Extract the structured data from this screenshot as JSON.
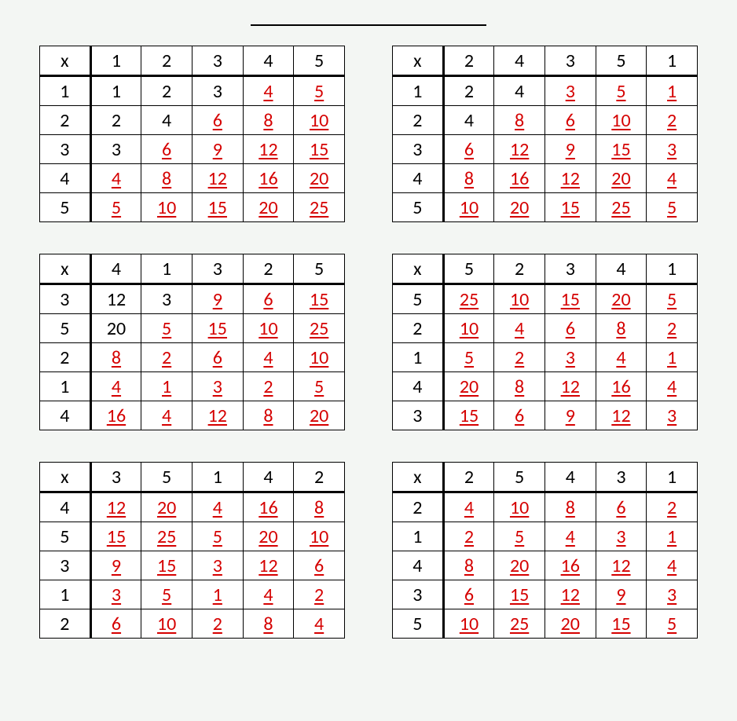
{
  "header_symbol": "x",
  "colors": {
    "answer": "#d50000",
    "plain": "#000000",
    "background": "#f3f6f3"
  },
  "font_size_pt": 18,
  "tables": [
    {
      "col_headers": [
        1,
        2,
        3,
        4,
        5
      ],
      "row_headers": [
        1,
        2,
        3,
        4,
        5
      ],
      "cells": [
        [
          {
            "v": 1,
            "ans": false
          },
          {
            "v": 2,
            "ans": false
          },
          {
            "v": 3,
            "ans": false
          },
          {
            "v": 4,
            "ans": true
          },
          {
            "v": 5,
            "ans": true
          }
        ],
        [
          {
            "v": 2,
            "ans": false
          },
          {
            "v": 4,
            "ans": false
          },
          {
            "v": 6,
            "ans": true
          },
          {
            "v": 8,
            "ans": true
          },
          {
            "v": 10,
            "ans": true
          }
        ],
        [
          {
            "v": 3,
            "ans": false
          },
          {
            "v": 6,
            "ans": true
          },
          {
            "v": 9,
            "ans": true
          },
          {
            "v": 12,
            "ans": true
          },
          {
            "v": 15,
            "ans": true
          }
        ],
        [
          {
            "v": 4,
            "ans": true
          },
          {
            "v": 8,
            "ans": true
          },
          {
            "v": 12,
            "ans": true
          },
          {
            "v": 16,
            "ans": true
          },
          {
            "v": 20,
            "ans": true
          }
        ],
        [
          {
            "v": 5,
            "ans": true
          },
          {
            "v": 10,
            "ans": true
          },
          {
            "v": 15,
            "ans": true
          },
          {
            "v": 20,
            "ans": true
          },
          {
            "v": 25,
            "ans": true
          }
        ]
      ]
    },
    {
      "col_headers": [
        2,
        4,
        3,
        5,
        1
      ],
      "row_headers": [
        1,
        2,
        3,
        4,
        5
      ],
      "cells": [
        [
          {
            "v": 2,
            "ans": false
          },
          {
            "v": 4,
            "ans": false
          },
          {
            "v": 3,
            "ans": true
          },
          {
            "v": 5,
            "ans": true
          },
          {
            "v": 1,
            "ans": true
          }
        ],
        [
          {
            "v": 4,
            "ans": false
          },
          {
            "v": 8,
            "ans": true
          },
          {
            "v": 6,
            "ans": true
          },
          {
            "v": 10,
            "ans": true
          },
          {
            "v": 2,
            "ans": true
          }
        ],
        [
          {
            "v": 6,
            "ans": true
          },
          {
            "v": 12,
            "ans": true
          },
          {
            "v": 9,
            "ans": true
          },
          {
            "v": 15,
            "ans": true
          },
          {
            "v": 3,
            "ans": true
          }
        ],
        [
          {
            "v": 8,
            "ans": true
          },
          {
            "v": 16,
            "ans": true
          },
          {
            "v": 12,
            "ans": true
          },
          {
            "v": 20,
            "ans": true
          },
          {
            "v": 4,
            "ans": true
          }
        ],
        [
          {
            "v": 10,
            "ans": true
          },
          {
            "v": 20,
            "ans": true
          },
          {
            "v": 15,
            "ans": true
          },
          {
            "v": 25,
            "ans": true
          },
          {
            "v": 5,
            "ans": true
          }
        ]
      ]
    },
    {
      "col_headers": [
        4,
        1,
        3,
        2,
        5
      ],
      "row_headers": [
        3,
        5,
        2,
        1,
        4
      ],
      "cells": [
        [
          {
            "v": 12,
            "ans": false
          },
          {
            "v": 3,
            "ans": false
          },
          {
            "v": 9,
            "ans": true
          },
          {
            "v": 6,
            "ans": true
          },
          {
            "v": 15,
            "ans": true
          }
        ],
        [
          {
            "v": 20,
            "ans": false
          },
          {
            "v": 5,
            "ans": true
          },
          {
            "v": 15,
            "ans": true
          },
          {
            "v": 10,
            "ans": true
          },
          {
            "v": 25,
            "ans": true
          }
        ],
        [
          {
            "v": 8,
            "ans": true
          },
          {
            "v": 2,
            "ans": true
          },
          {
            "v": 6,
            "ans": true
          },
          {
            "v": 4,
            "ans": true
          },
          {
            "v": 10,
            "ans": true
          }
        ],
        [
          {
            "v": 4,
            "ans": true
          },
          {
            "v": 1,
            "ans": true
          },
          {
            "v": 3,
            "ans": true
          },
          {
            "v": 2,
            "ans": true
          },
          {
            "v": 5,
            "ans": true
          }
        ],
        [
          {
            "v": 16,
            "ans": true
          },
          {
            "v": 4,
            "ans": true
          },
          {
            "v": 12,
            "ans": true
          },
          {
            "v": 8,
            "ans": true
          },
          {
            "v": 20,
            "ans": true
          }
        ]
      ]
    },
    {
      "col_headers": [
        5,
        2,
        3,
        4,
        1
      ],
      "row_headers": [
        5,
        2,
        1,
        4,
        3
      ],
      "cells": [
        [
          {
            "v": 25,
            "ans": true
          },
          {
            "v": 10,
            "ans": true
          },
          {
            "v": 15,
            "ans": true
          },
          {
            "v": 20,
            "ans": true
          },
          {
            "v": 5,
            "ans": true
          }
        ],
        [
          {
            "v": 10,
            "ans": true
          },
          {
            "v": 4,
            "ans": true
          },
          {
            "v": 6,
            "ans": true
          },
          {
            "v": 8,
            "ans": true
          },
          {
            "v": 2,
            "ans": true
          }
        ],
        [
          {
            "v": 5,
            "ans": true
          },
          {
            "v": 2,
            "ans": true
          },
          {
            "v": 3,
            "ans": true
          },
          {
            "v": 4,
            "ans": true
          },
          {
            "v": 1,
            "ans": true
          }
        ],
        [
          {
            "v": 20,
            "ans": true
          },
          {
            "v": 8,
            "ans": true
          },
          {
            "v": 12,
            "ans": true
          },
          {
            "v": 16,
            "ans": true
          },
          {
            "v": 4,
            "ans": true
          }
        ],
        [
          {
            "v": 15,
            "ans": true
          },
          {
            "v": 6,
            "ans": true
          },
          {
            "v": 9,
            "ans": true
          },
          {
            "v": 12,
            "ans": true
          },
          {
            "v": 3,
            "ans": true
          }
        ]
      ]
    },
    {
      "col_headers": [
        3,
        5,
        1,
        4,
        2
      ],
      "row_headers": [
        4,
        5,
        3,
        1,
        2
      ],
      "cells": [
        [
          {
            "v": 12,
            "ans": true
          },
          {
            "v": 20,
            "ans": true
          },
          {
            "v": 4,
            "ans": true
          },
          {
            "v": 16,
            "ans": true
          },
          {
            "v": 8,
            "ans": true
          }
        ],
        [
          {
            "v": 15,
            "ans": true
          },
          {
            "v": 25,
            "ans": true
          },
          {
            "v": 5,
            "ans": true
          },
          {
            "v": 20,
            "ans": true
          },
          {
            "v": 10,
            "ans": true
          }
        ],
        [
          {
            "v": 9,
            "ans": true
          },
          {
            "v": 15,
            "ans": true
          },
          {
            "v": 3,
            "ans": true
          },
          {
            "v": 12,
            "ans": true
          },
          {
            "v": 6,
            "ans": true
          }
        ],
        [
          {
            "v": 3,
            "ans": true
          },
          {
            "v": 5,
            "ans": true
          },
          {
            "v": 1,
            "ans": true
          },
          {
            "v": 4,
            "ans": true
          },
          {
            "v": 2,
            "ans": true
          }
        ],
        [
          {
            "v": 6,
            "ans": true
          },
          {
            "v": 10,
            "ans": true
          },
          {
            "v": 2,
            "ans": true
          },
          {
            "v": 8,
            "ans": true
          },
          {
            "v": 4,
            "ans": true
          }
        ]
      ]
    },
    {
      "col_headers": [
        2,
        5,
        4,
        3,
        1
      ],
      "row_headers": [
        2,
        1,
        4,
        3,
        5
      ],
      "cells": [
        [
          {
            "v": 4,
            "ans": true
          },
          {
            "v": 10,
            "ans": true
          },
          {
            "v": 8,
            "ans": true
          },
          {
            "v": 6,
            "ans": true
          },
          {
            "v": 2,
            "ans": true
          }
        ],
        [
          {
            "v": 2,
            "ans": true
          },
          {
            "v": 5,
            "ans": true
          },
          {
            "v": 4,
            "ans": true
          },
          {
            "v": 3,
            "ans": true
          },
          {
            "v": 1,
            "ans": true
          }
        ],
        [
          {
            "v": 8,
            "ans": true
          },
          {
            "v": 20,
            "ans": true
          },
          {
            "v": 16,
            "ans": true
          },
          {
            "v": 12,
            "ans": true
          },
          {
            "v": 4,
            "ans": true
          }
        ],
        [
          {
            "v": 6,
            "ans": true
          },
          {
            "v": 15,
            "ans": true
          },
          {
            "v": 12,
            "ans": true
          },
          {
            "v": 9,
            "ans": true
          },
          {
            "v": 3,
            "ans": true
          }
        ],
        [
          {
            "v": 10,
            "ans": true
          },
          {
            "v": 25,
            "ans": true
          },
          {
            "v": 20,
            "ans": true
          },
          {
            "v": 15,
            "ans": true
          },
          {
            "v": 5,
            "ans": true
          }
        ]
      ]
    }
  ]
}
